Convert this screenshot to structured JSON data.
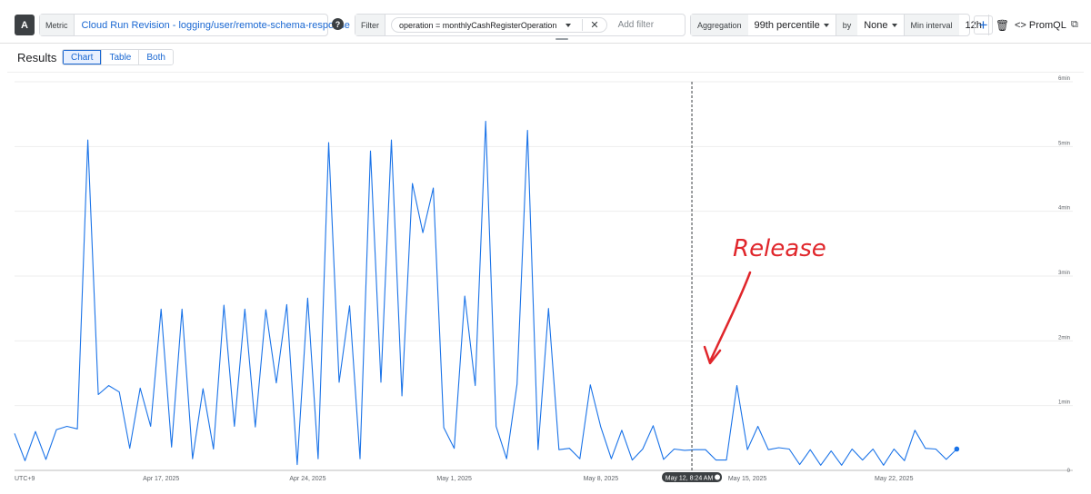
{
  "query": {
    "badge": "A",
    "metric_label": "Metric",
    "metric_value": "Cloud Run Revision - logging/user/remote-schema-response",
    "filter_label": "Filter",
    "filter_chip": "operation  =  monthlyCashRegisterOperation",
    "filter_close": "✕",
    "add_filter": "Add filter",
    "aggregation_label": "Aggregation",
    "aggregation_value": "99th percentile",
    "by_label": "by",
    "by_value": "None",
    "interval_label": "Min interval",
    "interval_value": "12h",
    "trash_icon": "🗑",
    "plus_label": "+",
    "promql_label": "<> PromQL",
    "copy_icon": "⧉",
    "help_icon": "?"
  },
  "results": {
    "title": "Results",
    "tabs": [
      "Chart",
      "Table",
      "Both"
    ],
    "active_tab": "Chart"
  },
  "annotation": {
    "text": "Release",
    "color": "#e0262b"
  },
  "colors": {
    "series": "#1a73e8",
    "accent": "#1967d2"
  },
  "chart_data": {
    "type": "line",
    "title": "",
    "xlabel": "",
    "ylabel": "",
    "timezone_label": "UTC+9",
    "x_start": "2025-04-10T00:00",
    "interval_hours": 12,
    "xlim": [
      "2025-04-10T00:00",
      "2025-05-29T12:00"
    ],
    "ylim_minutes": [
      0,
      6
    ],
    "y_ticks": [
      {
        "value": 0,
        "label": "0"
      },
      {
        "value": 1,
        "label": "1min"
      },
      {
        "value": 2,
        "label": "2min"
      },
      {
        "value": 3,
        "label": "3min"
      },
      {
        "value": 4,
        "label": "4min"
      },
      {
        "value": 5,
        "label": "5min"
      },
      {
        "value": 6,
        "label": "6min"
      }
    ],
    "x_ticks": [
      {
        "date": "2025-04-17T00:00",
        "label": "Apr 17, 2025"
      },
      {
        "date": "2025-04-24T00:00",
        "label": "Apr 24, 2025"
      },
      {
        "date": "2025-05-01T00:00",
        "label": "May 1, 2025"
      },
      {
        "date": "2025-05-08T00:00",
        "label": "May 8, 2025"
      },
      {
        "date": "2025-05-15T00:00",
        "label": "May 15, 2025"
      },
      {
        "date": "2025-05-22T00:00",
        "label": "May 22, 2025"
      }
    ],
    "hover": {
      "date": "2025-05-12T08:24",
      "label": "May 12, 8:24 AM"
    },
    "grid": true,
    "legend": "none",
    "series": [
      {
        "values_minutes": [
          0.57,
          0.15,
          0.6,
          0.17,
          0.63,
          0.68,
          0.64,
          5.1,
          1.17,
          1.31,
          1.21,
          0.34,
          1.27,
          0.68,
          2.49,
          0.36,
          2.49,
          0.18,
          1.26,
          0.33,
          2.55,
          0.68,
          2.49,
          0.67,
          2.48,
          1.35,
          2.56,
          0.09,
          2.66,
          0.18,
          5.06,
          1.36,
          2.54,
          0.18,
          4.93,
          1.36,
          5.1,
          1.15,
          4.43,
          3.67,
          4.36,
          0.66,
          0.34,
          2.69,
          1.31,
          5.39,
          0.68,
          0.18,
          1.33,
          5.25,
          0.32,
          2.5,
          0.32,
          0.34,
          0.18,
          1.32,
          0.67,
          0.18,
          0.62,
          0.16,
          0.33,
          0.69,
          0.17,
          0.33,
          0.31,
          0.32,
          0.32,
          0.16,
          0.16,
          1.31,
          0.32,
          0.68,
          0.32,
          0.35,
          0.33,
          0.09,
          0.32,
          0.08,
          0.3,
          0.08,
          0.33,
          0.16,
          0.33,
          0.08,
          0.33,
          0.15,
          0.62,
          0.34,
          0.33,
          0.17,
          0.33
        ]
      }
    ]
  }
}
